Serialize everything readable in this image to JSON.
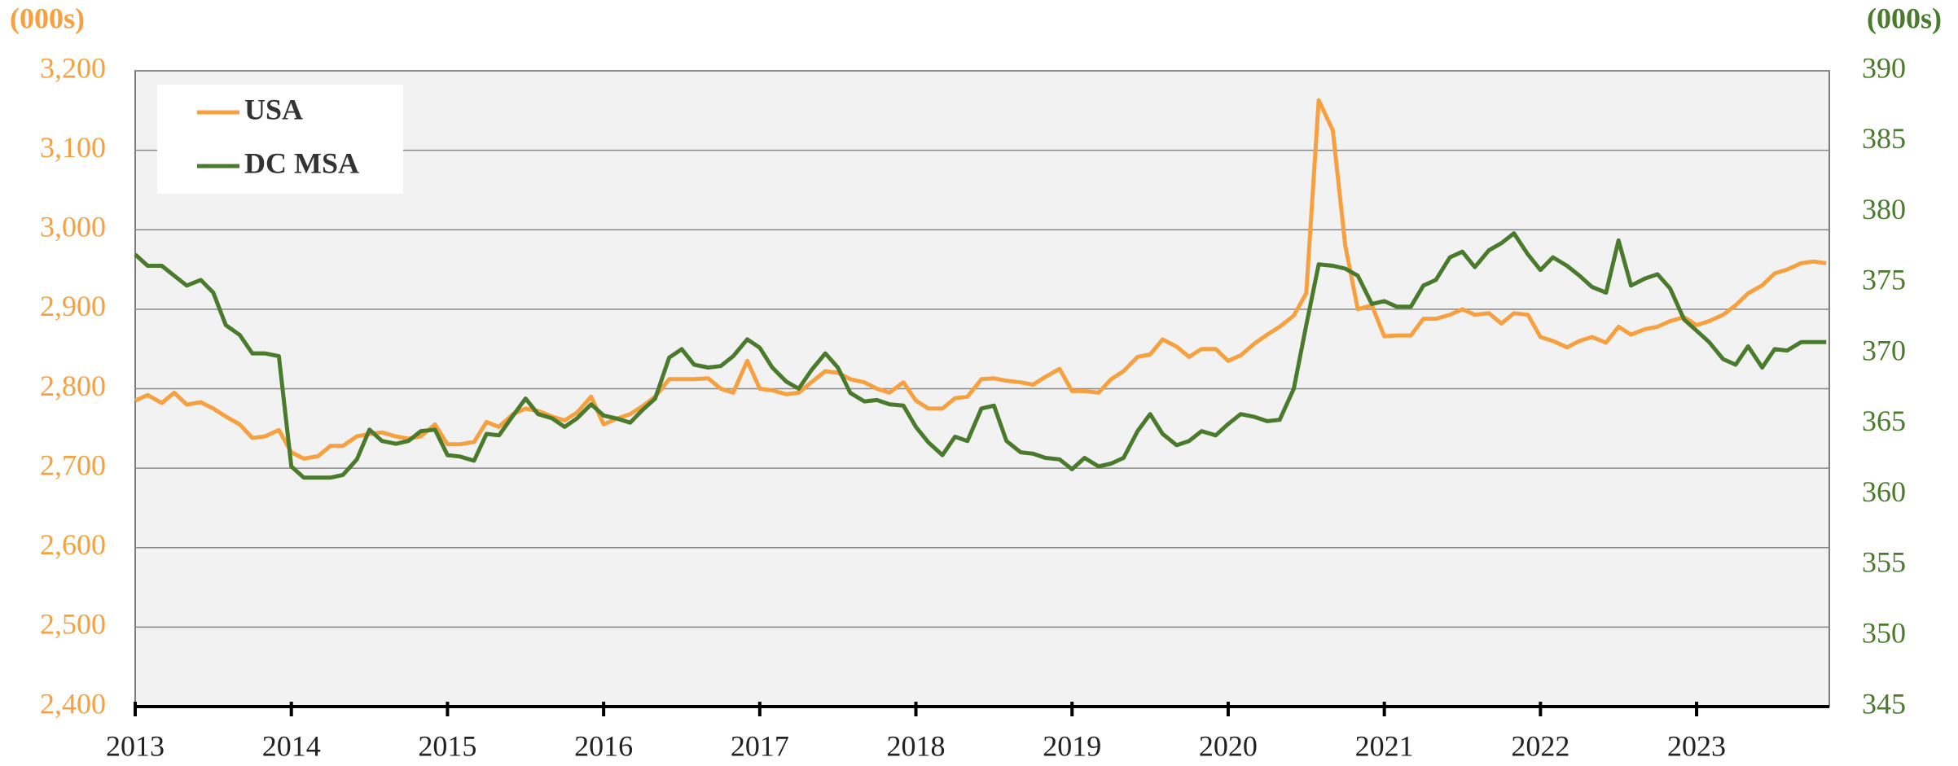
{
  "chart_data": {
    "type": "line",
    "y_label": "(000s)",
    "y2_label": "(000s)",
    "x": [
      2013,
      2013.08,
      2013.17,
      2013.25,
      2013.33,
      2013.42,
      2013.5,
      2013.58,
      2013.67,
      2013.75,
      2013.83,
      2013.92,
      2014,
      2014.08,
      2014.17,
      2014.25,
      2014.33,
      2014.42,
      2014.5,
      2014.58,
      2014.67,
      2014.75,
      2014.83,
      2014.92,
      2015,
      2015.08,
      2015.17,
      2015.25,
      2015.33,
      2015.42,
      2015.5,
      2015.58,
      2015.67,
      2015.75,
      2015.83,
      2015.92,
      2016,
      2016.08,
      2016.17,
      2016.25,
      2016.33,
      2016.42,
      2016.5,
      2016.58,
      2016.67,
      2016.75,
      2016.83,
      2016.92,
      2017,
      2017.08,
      2017.17,
      2017.25,
      2017.33,
      2017.42,
      2017.5,
      2017.58,
      2017.67,
      2017.75,
      2017.83,
      2017.92,
      2018,
      2018.08,
      2018.17,
      2018.25,
      2018.33,
      2018.42,
      2018.5,
      2018.58,
      2018.67,
      2018.75,
      2018.83,
      2018.92,
      2019,
      2019.08,
      2019.17,
      2019.25,
      2019.33,
      2019.42,
      2019.5,
      2019.58,
      2019.67,
      2019.75,
      2019.83,
      2019.92,
      2020,
      2020.08,
      2020.17,
      2020.25,
      2020.33,
      2020.42,
      2020.5,
      2020.58,
      2020.67,
      2020.75,
      2020.83,
      2020.92,
      2021,
      2021.08,
      2021.17,
      2021.25,
      2021.33,
      2021.42,
      2021.5,
      2021.58,
      2021.67,
      2021.75,
      2021.83,
      2021.92,
      2022,
      2022.08,
      2022.17,
      2022.25,
      2022.33,
      2022.42,
      2022.5,
      2022.58,
      2022.67,
      2022.75,
      2022.83,
      2022.92,
      2023,
      2023.08,
      2023.17,
      2023.25,
      2023.33,
      2023.42,
      2023.5,
      2023.58,
      2023.67,
      2023.75,
      2023.83
    ],
    "series": [
      {
        "name": "USA",
        "color": "#f7a040",
        "values": [
          2785,
          2792,
          2782,
          2795,
          2780,
          2783,
          2775,
          2765,
          2755,
          2738,
          2740,
          2748,
          2720,
          2712,
          2715,
          2728,
          2728,
          2740,
          2743,
          2745,
          2740,
          2737,
          2740,
          2755,
          2730,
          2730,
          2733,
          2758,
          2752,
          2768,
          2775,
          2772,
          2765,
          2760,
          2770,
          2790,
          2755,
          2762,
          2768,
          2778,
          2790,
          2812,
          2812,
          2812,
          2813,
          2800,
          2795,
          2835,
          2800,
          2798,
          2793,
          2795,
          2808,
          2822,
          2820,
          2812,
          2808,
          2800,
          2795,
          2808,
          2785,
          2775,
          2775,
          2788,
          2790,
          2812,
          2813,
          2810,
          2808,
          2805,
          2815,
          2825,
          2797,
          2797,
          2795,
          2812,
          2822,
          2840,
          2843,
          2862,
          2853,
          2840,
          2850,
          2850,
          2835,
          2842,
          2857,
          2868,
          2878,
          2892,
          2920,
          3163,
          3125,
          2980,
          2900,
          2905,
          2866,
          2867,
          2867,
          2888,
          2888,
          2893,
          2900,
          2893,
          2895,
          2882,
          2895,
          2893,
          2865,
          2860,
          2852,
          2860,
          2865,
          2858,
          2878,
          2868,
          2875,
          2878,
          2885,
          2890,
          2880,
          2885,
          2893,
          2905,
          2920,
          2930,
          2945,
          2950,
          2958,
          2960,
          2958
        ]
      },
      {
        "name": "DC MSA",
        "color": "#4a7a2b",
        "axis": "y2",
        "values": [
          377,
          376.2,
          376.2,
          375.5,
          374.8,
          375.2,
          374.3,
          372,
          371.3,
          370,
          370,
          369.8,
          362,
          361.2,
          361.2,
          361.2,
          361.4,
          362.5,
          364.6,
          363.8,
          363.6,
          363.8,
          364.5,
          364.6,
          362.8,
          362.7,
          362.4,
          364.3,
          364.2,
          365.6,
          366.8,
          365.7,
          365.4,
          364.8,
          365.4,
          366.4,
          365.6,
          365.4,
          365.1,
          366,
          366.8,
          369.7,
          370.3,
          369.2,
          369,
          369.1,
          369.8,
          371,
          370.4,
          369,
          368,
          367.5,
          368.8,
          370,
          369,
          367.2,
          366.6,
          366.7,
          366.4,
          366.3,
          364.8,
          363.7,
          362.8,
          364.1,
          363.8,
          366.1,
          366.3,
          363.8,
          363,
          362.9,
          362.6,
          362.5,
          361.8,
          362.6,
          362,
          362.2,
          362.6,
          364.5,
          365.7,
          364.3,
          363.5,
          363.8,
          364.5,
          364.2,
          365,
          365.7,
          365.5,
          365.2,
          365.3,
          367.5,
          372,
          376.3,
          376.2,
          376,
          375.5,
          373.5,
          373.7,
          373.3,
          373.3,
          374.8,
          375.2,
          376.8,
          377.2,
          376.1,
          377.3,
          377.8,
          378.5,
          377,
          375.9,
          376.8,
          376.2,
          375.5,
          374.7,
          374.3,
          378,
          374.8,
          375.3,
          375.6,
          374.6,
          372.4,
          371.6,
          370.8,
          369.6,
          369.2,
          370.5,
          369,
          370.3,
          370.2,
          370.8,
          370.8,
          370.8
        ]
      }
    ],
    "xlim": [
      2013,
      2023.85
    ],
    "xticks": [
      2013,
      2014,
      2015,
      2016,
      2017,
      2018,
      2019,
      2020,
      2021,
      2022,
      2023
    ],
    "ylim": [
      2400,
      3200
    ],
    "yticks": [
      {
        "value": 2400,
        "label": "2,400"
      },
      {
        "value": 2500,
        "label": "2,500"
      },
      {
        "value": 2600,
        "label": "2,600"
      },
      {
        "value": 2700,
        "label": "2,700"
      },
      {
        "value": 2800,
        "label": "2,800"
      },
      {
        "value": 2900,
        "label": "2,900"
      },
      {
        "value": 3000,
        "label": "3,000"
      },
      {
        "value": 3100,
        "label": "3,100"
      },
      {
        "value": 3200,
        "label": "3,200"
      }
    ],
    "y2lim": [
      345,
      390
    ],
    "y2ticks": [
      345,
      350,
      355,
      360,
      365,
      370,
      375,
      380,
      385,
      390
    ],
    "grid": true,
    "legend": "upper left"
  }
}
